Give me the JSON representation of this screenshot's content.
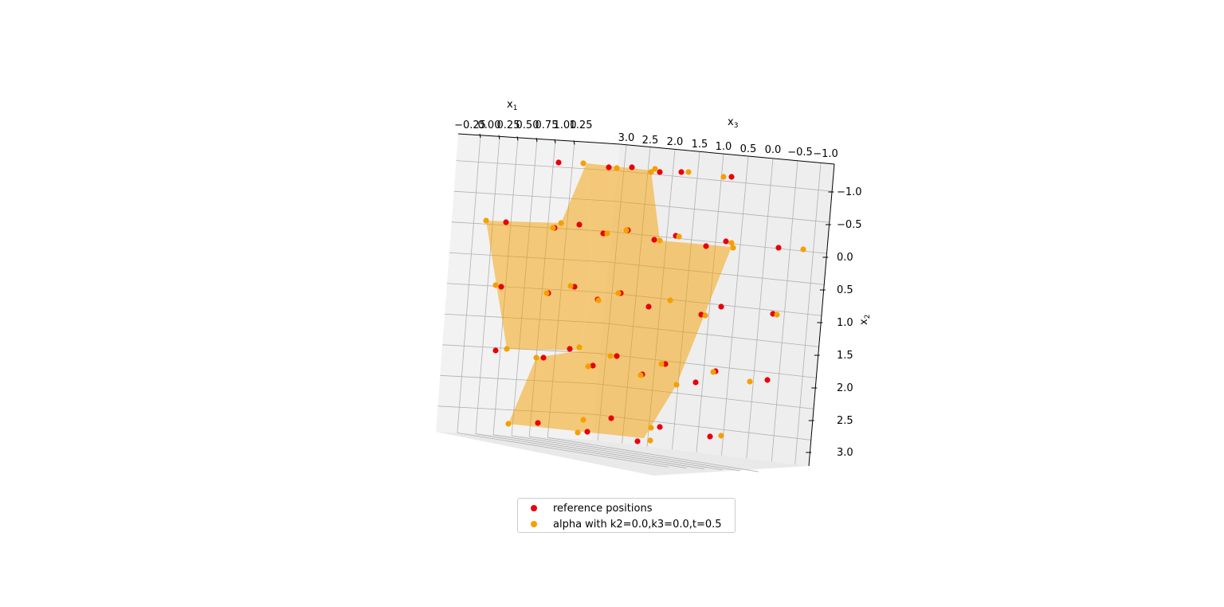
{
  "chart_data": {
    "type": "scatter",
    "plot_kind": "3d scatter with surface",
    "axes": {
      "x1": {
        "label": "x",
        "label_sub": "1",
        "ticks": [
          "−0.25",
          "0.00",
          "0.25",
          "0.50",
          "0.75",
          "1.00",
          "1.25"
        ]
      },
      "x3": {
        "label": "x",
        "label_sub": "3",
        "ticks": [
          "3.0",
          "2.5",
          "2.0",
          "1.5",
          "1.0",
          "0.5",
          "0.0",
          "−0.5",
          "−1.0"
        ]
      },
      "x2": {
        "label": "x",
        "label_sub": "2",
        "ticks": [
          "−1.0",
          "−0.5",
          "0.0",
          "0.5",
          "1.0",
          "1.5",
          "2.0",
          "2.5",
          "3.0"
        ]
      }
    },
    "grid": true,
    "legend_position": "bottom-center",
    "series": [
      {
        "name": "reference positions",
        "color": "#e8000b",
        "points": [
          [
            701,
            204
          ],
          [
            764,
            210
          ],
          [
            793,
            210
          ],
          [
            828,
            216
          ],
          [
            855,
            216
          ],
          [
            918,
            222
          ],
          [
            635,
            279
          ],
          [
            696,
            286
          ],
          [
            727,
            282
          ],
          [
            757,
            293
          ],
          [
            788,
            289
          ],
          [
            821,
            301
          ],
          [
            848,
            296
          ],
          [
            886,
            309
          ],
          [
            911,
            303
          ],
          [
            977,
            311
          ],
          [
            629,
            360
          ],
          [
            688,
            368
          ],
          [
            721,
            360
          ],
          [
            750,
            376
          ],
          [
            779,
            368
          ],
          [
            814,
            385
          ],
          [
            880,
            395
          ],
          [
            905,
            385
          ],
          [
            970,
            394
          ],
          [
            622,
            440
          ],
          [
            682,
            449
          ],
          [
            715,
            438
          ],
          [
            744,
            459
          ],
          [
            774,
            447
          ],
          [
            806,
            470
          ],
          [
            835,
            457
          ],
          [
            873,
            480
          ],
          [
            898,
            466
          ],
          [
            963,
            477
          ],
          [
            675,
            531
          ],
          [
            737,
            542
          ],
          [
            767,
            525
          ],
          [
            800,
            554
          ],
          [
            828,
            536
          ],
          [
            891,
            548
          ]
        ]
      },
      {
        "name": "alpha with k2=0.0,k3=0.0,t=0.5",
        "color": "#f5a000",
        "points": [
          [
            732,
            205
          ],
          [
            774,
            211
          ],
          [
            822,
            212
          ],
          [
            817,
            216
          ],
          [
            864,
            216
          ],
          [
            908,
            222
          ],
          [
            610,
            277
          ],
          [
            694,
            286
          ],
          [
            704,
            280
          ],
          [
            762,
            293
          ],
          [
            786,
            289
          ],
          [
            828,
            302
          ],
          [
            852,
            297
          ],
          [
            920,
            311
          ],
          [
            918,
            305
          ],
          [
            1008,
            313
          ],
          [
            622,
            358
          ],
          [
            686,
            368
          ],
          [
            716,
            359
          ],
          [
            751,
            377
          ],
          [
            776,
            368
          ],
          [
            841,
            377
          ],
          [
            885,
            396
          ],
          [
            975,
            395
          ],
          [
            636,
            438
          ],
          [
            673,
            449
          ],
          [
            727,
            436
          ],
          [
            738,
            460
          ],
          [
            766,
            447
          ],
          [
            804,
            471
          ],
          [
            830,
            457
          ],
          [
            895,
            467
          ],
          [
            849,
            483
          ],
          [
            941,
            479
          ],
          [
            638,
            532
          ],
          [
            725,
            543
          ],
          [
            732,
            527
          ],
          [
            817,
            537
          ],
          [
            816,
            553
          ],
          [
            905,
            547
          ]
        ]
      }
    ]
  },
  "legend": {
    "items": [
      {
        "label": "reference positions",
        "color": "#e8000b"
      },
      {
        "label": "alpha with k2=0.0,k3=0.0,t=0.5",
        "color": "#f5a000"
      }
    ]
  },
  "colors": {
    "surface": "#f5a000",
    "pane": "#f2f2f2",
    "grid": "#b0b0b0"
  }
}
